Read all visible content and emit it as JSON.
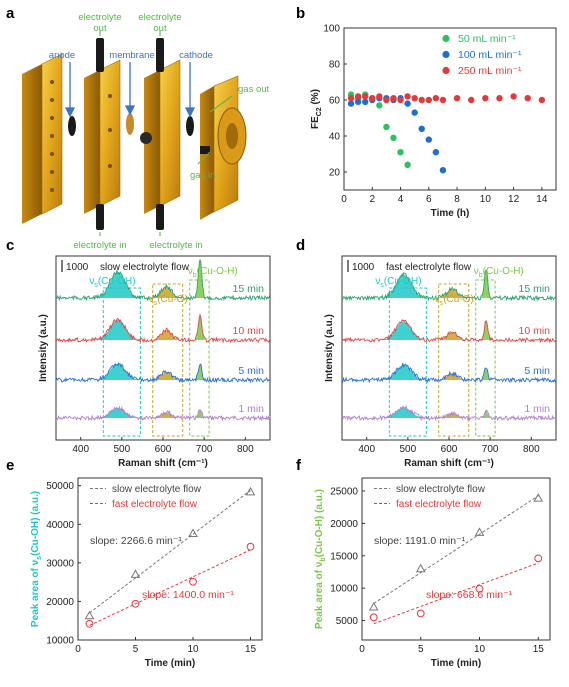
{
  "colors": {
    "green": "#2fbf5f",
    "blue": "#1f6fd0",
    "red": "#e23a3a",
    "cyan": "#1ec8c8",
    "gold": "#c9a227",
    "lime": "#7ac943",
    "spec15": "#2aa36b",
    "spec10": "#e04848",
    "spec5": "#2b6fd6",
    "spec1": "#b07fd6",
    "schematic_label": "#55b84a",
    "arrow": "#3b73c8",
    "gray_text": "#555555"
  },
  "panels": {
    "a": {
      "letter": "a",
      "labels": {
        "electrolyte_out_1": "electrolyte\nout",
        "electrolyte_out_2": "electrolyte\nout",
        "anode": "anode",
        "membrane": "membrane",
        "cathode": "cathode",
        "gas_out": "gas out",
        "gas_in": "gas in",
        "electrolyte_in_1": "electrolyte in",
        "electrolyte_in_2": "electrolyte in"
      }
    },
    "b": {
      "letter": "b"
    },
    "c": {
      "letter": "c",
      "scale": "1000",
      "condition": "slow electrolyte flow"
    },
    "d": {
      "letter": "d",
      "scale": "1000",
      "condition": "fast electrolyte flow"
    },
    "e": {
      "letter": "e"
    },
    "f": {
      "letter": "f"
    }
  },
  "chart_data": [
    {
      "panel": "b",
      "type": "scatter",
      "xlabel": "Time (h)",
      "ylabel": "FE",
      "ylabel_sub": "C2",
      "ylabel_unit": " (%)",
      "xlim": [
        0,
        15
      ],
      "ylim": [
        10,
        100
      ],
      "xticks": [
        0,
        2,
        4,
        6,
        8,
        10,
        12,
        14
      ],
      "yticks": [
        20,
        40,
        60,
        80,
        100
      ],
      "legend_position": "top-right",
      "series": [
        {
          "name": "50 mL min⁻¹",
          "color": "#2fbf5f",
          "x": [
            0.5,
            1.0,
            1.5,
            2.0,
            2.5,
            3.0,
            3.5,
            4.0,
            4.5
          ],
          "y": [
            63,
            61,
            63,
            61,
            57,
            45,
            39,
            31,
            24
          ]
        },
        {
          "name": "100 mL min⁻¹",
          "color": "#1f6fd0",
          "x": [
            0.5,
            1.0,
            1.5,
            2.0,
            2.5,
            3.0,
            3.5,
            4.0,
            4.5,
            5.0,
            5.5,
            6.0,
            6.5,
            7.0
          ],
          "y": [
            58,
            59,
            59,
            60,
            61,
            61,
            60,
            61,
            58,
            53,
            44,
            38,
            31,
            21
          ]
        },
        {
          "name": "250 mL min⁻¹",
          "color": "#e23a3a",
          "x": [
            0.5,
            1.0,
            1.5,
            2.0,
            2.5,
            3.0,
            3.5,
            4.0,
            4.5,
            5.0,
            5.5,
            6.0,
            6.5,
            7.0,
            8.0,
            9.0,
            10.0,
            11.0,
            12.0,
            13.0,
            14.0
          ],
          "y": [
            61,
            62,
            62,
            61,
            62,
            60,
            61,
            60,
            62,
            61,
            60,
            60,
            61,
            60,
            61,
            60,
            61,
            61,
            62,
            61,
            60
          ]
        }
      ]
    },
    {
      "panel": "c",
      "type": "line",
      "xlabel": "Raman shift (cm⁻¹)",
      "ylabel": "Intensity (a.u.)",
      "xlim": [
        340,
        860
      ],
      "xticks": [
        400,
        500,
        600,
        700,
        800
      ],
      "series": [
        {
          "name": "15 min",
          "amp": [
            1.0,
            0.45,
            1.45
          ]
        },
        {
          "name": "10 min",
          "amp": [
            0.78,
            0.38,
            0.95
          ]
        },
        {
          "name": "5 min",
          "amp": [
            0.62,
            0.32,
            0.62
          ]
        },
        {
          "name": "1 min",
          "amp": [
            0.38,
            0.22,
            0.32
          ]
        }
      ],
      "regions": [
        {
          "label": "ν",
          "sub": "s",
          "suffix": "(Cu-OH)",
          "range": [
            455,
            545
          ]
        },
        {
          "label": "ν",
          "sub": "s",
          "suffix": "(Cu-O)",
          "range": [
            575,
            648
          ]
        },
        {
          "label": "ν",
          "sub": "b",
          "suffix": "(Cu-O-H)",
          "range": [
            665,
            712
          ]
        }
      ]
    },
    {
      "panel": "d",
      "type": "line",
      "xlabel": "Raman shift (cm⁻¹)",
      "ylabel": "Intensity (a.u.)",
      "xlim": [
        340,
        860
      ],
      "xticks": [
        400,
        500,
        600,
        700,
        800
      ],
      "series": [
        {
          "name": "15 min",
          "amp": [
            0.9,
            0.35,
            1.1
          ]
        },
        {
          "name": "10 min",
          "amp": [
            0.72,
            0.3,
            0.72
          ]
        },
        {
          "name": "5 min",
          "amp": [
            0.58,
            0.25,
            0.45
          ]
        },
        {
          "name": "1 min",
          "amp": [
            0.4,
            0.18,
            0.28
          ]
        }
      ],
      "regions": [
        {
          "label": "ν",
          "sub": "s",
          "suffix": "(Cu-OH)",
          "range": [
            455,
            545
          ]
        },
        {
          "label": "ν",
          "sub": "s",
          "suffix": "(Cu-O)",
          "range": [
            575,
            648
          ]
        },
        {
          "label": "ν",
          "sub": "b",
          "suffix": "(Cu-O-H)",
          "range": [
            665,
            712
          ]
        }
      ]
    },
    {
      "panel": "e",
      "type": "scatter",
      "xlabel": "Time (min)",
      "ylabel": "Peak area of ν",
      "ylabel_sub": "s",
      "ylabel_unit": "(Cu-OH) (a.u.)",
      "ylabel_color": "#1ec8c8",
      "xlim": [
        0,
        16
      ],
      "ylim": [
        10000,
        52000
      ],
      "xticks": [
        0,
        5,
        10,
        15
      ],
      "yticks": [
        10000,
        20000,
        30000,
        40000,
        50000
      ],
      "series": [
        {
          "name": "slow electrolyte flow",
          "color": "#777777",
          "marker": "triangle",
          "x": [
            1,
            5,
            10,
            15
          ],
          "y": [
            16300,
            27000,
            37600,
            48400
          ],
          "slope_label": "slope: 2266.6 min⁻¹"
        },
        {
          "name": "fast electrolyte flow",
          "color": "#e23a3a",
          "marker": "circle",
          "x": [
            1,
            5,
            10,
            15
          ],
          "y": [
            14200,
            19400,
            25100,
            34200
          ],
          "slope_label": "slope: 1400.0 min⁻¹"
        }
      ]
    },
    {
      "panel": "f",
      "type": "scatter",
      "xlabel": "Time (min)",
      "ylabel": "Peak area of ν",
      "ylabel_sub": "b",
      "ylabel_unit": "(Cu-O-H) (a.u.)",
      "ylabel_color": "#7ac943",
      "xlim": [
        0,
        16
      ],
      "ylim": [
        2000,
        27000
      ],
      "xticks": [
        0,
        5,
        10,
        15
      ],
      "yticks": [
        5000,
        10000,
        15000,
        20000,
        25000
      ],
      "series": [
        {
          "name": "slow electrolyte flow",
          "color": "#777777",
          "marker": "triangle",
          "x": [
            1,
            5,
            10,
            15
          ],
          "y": [
            7100,
            13000,
            18600,
            23900
          ],
          "slope_label": "slope: 1191.0 min⁻¹"
        },
        {
          "name": "fast electrolyte flow",
          "color": "#e23a3a",
          "marker": "circle",
          "x": [
            1,
            5,
            10,
            15
          ],
          "y": [
            5500,
            6100,
            9900,
            14600
          ],
          "slope_label": "slope: 668.6 min⁻¹"
        }
      ]
    }
  ]
}
